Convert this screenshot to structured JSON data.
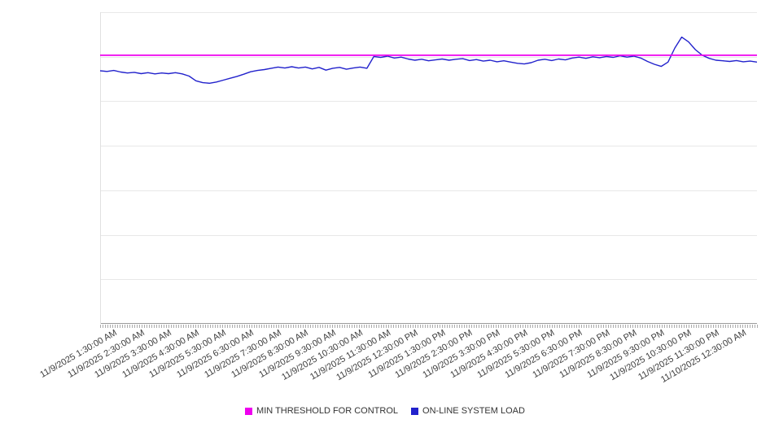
{
  "chart_data": {
    "type": "line",
    "title": "",
    "xlabel": "",
    "ylabel": "",
    "y_axis_labels_visible": false,
    "ylim": [
      0,
      100
    ],
    "gridlines": {
      "horizontal_divisions": 7
    },
    "legend_position": "bottom-center",
    "categories": [
      "11/9/2025 1:30:00 AM",
      "11/9/2025 2:30:00 AM",
      "11/9/2025 3:30:00 AM",
      "11/9/2025 4:30:00 AM",
      "11/9/2025 5:30:00 AM",
      "11/9/2025 6:30:00 AM",
      "11/9/2025 7:30:00 AM",
      "11/9/2025 8:30:00 AM",
      "11/9/2025 9:30:00 AM",
      "11/9/2025 10:30:00 AM",
      "11/9/2025 11:30:00 AM",
      "11/9/2025 12:30:00 PM",
      "11/9/2025 1:30:00 PM",
      "11/9/2025 2:30:00 PM",
      "11/9/2025 3:30:00 PM",
      "11/9/2025 4:30:00 PM",
      "11/9/2025 5:30:00 PM",
      "11/9/2025 6:30:00 PM",
      "11/9/2025 7:30:00 PM",
      "11/9/2025 8:30:00 PM",
      "11/9/2025 9:30:00 PM",
      "11/9/2025 10:30:00 PM",
      "11/9/2025 11:30:00 PM",
      "11/10/2025 12:30:00 AM"
    ],
    "series": [
      {
        "name": "MIN THRESHOLD FOR CONTROL",
        "color": "#ee00ee",
        "style": "horizontal-threshold",
        "value": 86.2
      },
      {
        "name": "ON-LINE SYSTEM LOAD",
        "color": "#2222cc",
        "style": "line",
        "x_range": [
          "11/9/2025 1:00:00 AM",
          "11/10/2025 1:00:00 AM"
        ],
        "interval_minutes": 15,
        "values": [
          81.2,
          81.0,
          81.3,
          80.8,
          80.5,
          80.7,
          80.3,
          80.6,
          80.2,
          80.5,
          80.3,
          80.6,
          80.2,
          79.5,
          78.0,
          77.4,
          77.2,
          77.6,
          78.2,
          78.8,
          79.4,
          80.1,
          80.9,
          81.3,
          81.6,
          82.0,
          82.4,
          82.1,
          82.5,
          82.1,
          82.4,
          81.8,
          82.3,
          81.4,
          82.0,
          82.3,
          81.7,
          82.1,
          82.4,
          82.0,
          85.8,
          85.5,
          85.9,
          85.3,
          85.6,
          85.0,
          84.6,
          84.9,
          84.4,
          84.7,
          85.0,
          84.6,
          84.9,
          85.1,
          84.5,
          84.8,
          84.3,
          84.6,
          84.1,
          84.4,
          84.0,
          83.6,
          83.4,
          83.8,
          84.6,
          84.9,
          84.5,
          85.0,
          84.7,
          85.3,
          85.6,
          85.2,
          85.7,
          85.4,
          85.8,
          85.5,
          86.0,
          85.6,
          85.9,
          85.3,
          84.2,
          83.3,
          82.6,
          84.0,
          88.5,
          92.0,
          90.5,
          88.0,
          86.2,
          85.2,
          84.6,
          84.4,
          84.2,
          84.5,
          84.1,
          84.3,
          84.0
        ]
      }
    ]
  }
}
